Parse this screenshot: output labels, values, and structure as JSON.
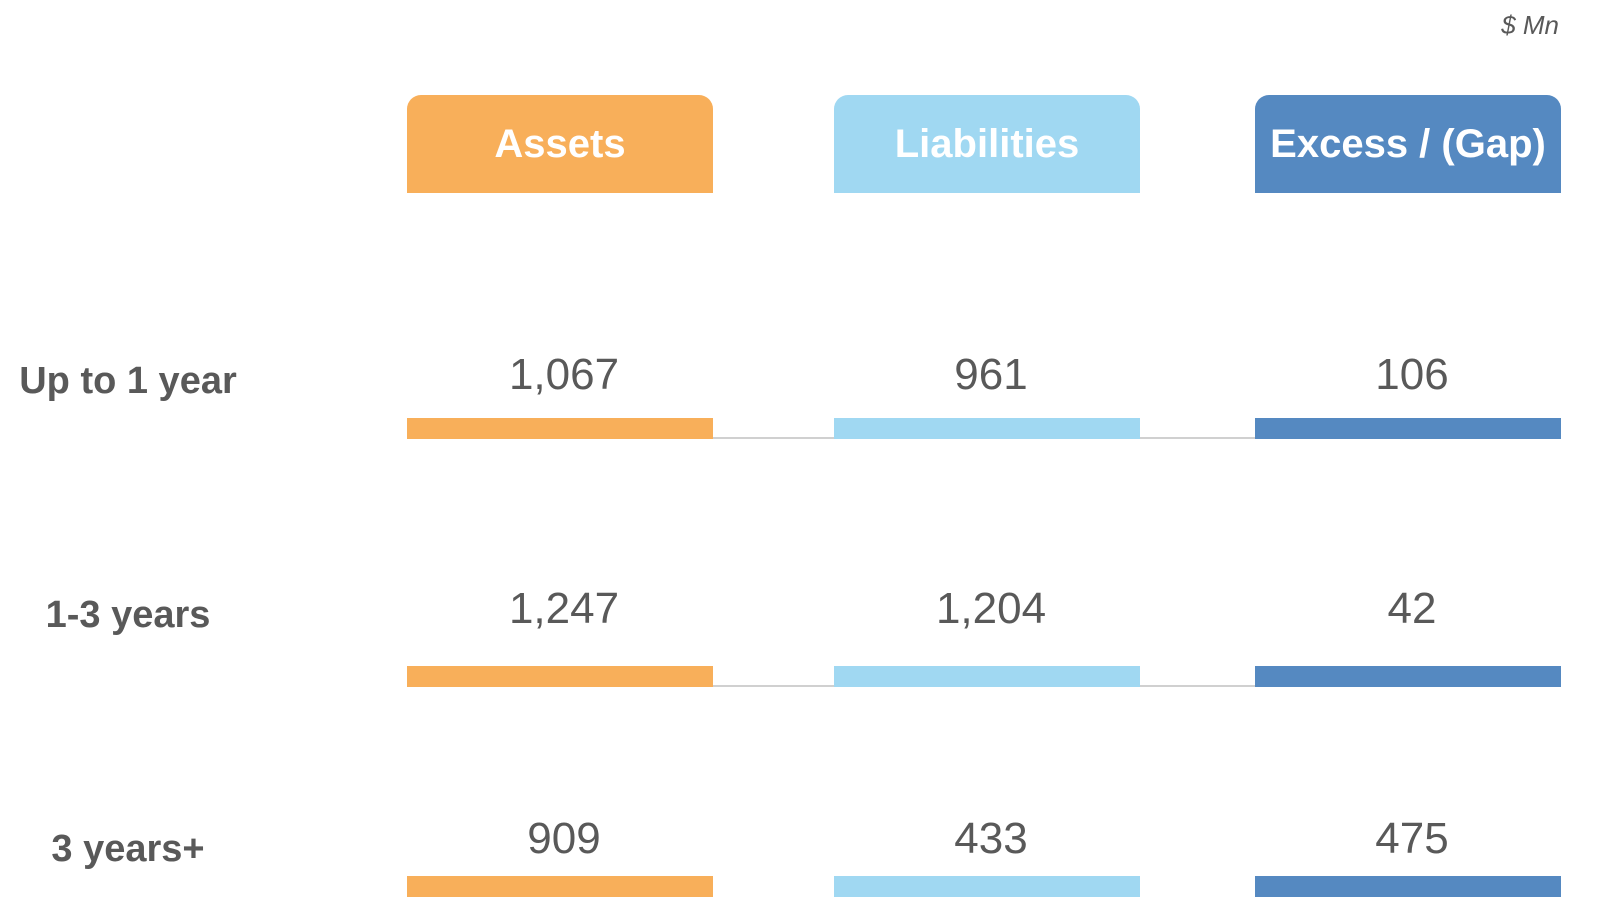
{
  "unit": "$ Mn",
  "columns": [
    "Assets",
    "Liabilities",
    "Excess / (Gap)"
  ],
  "rows": [
    {
      "label": "Up to 1 year",
      "values": [
        "1,067",
        "961",
        "106"
      ]
    },
    {
      "label": "1-3 years",
      "values": [
        "1,247",
        "1,204",
        "42"
      ]
    },
    {
      "label": "3 years+",
      "values": [
        "909",
        "433",
        "475"
      ]
    }
  ]
}
